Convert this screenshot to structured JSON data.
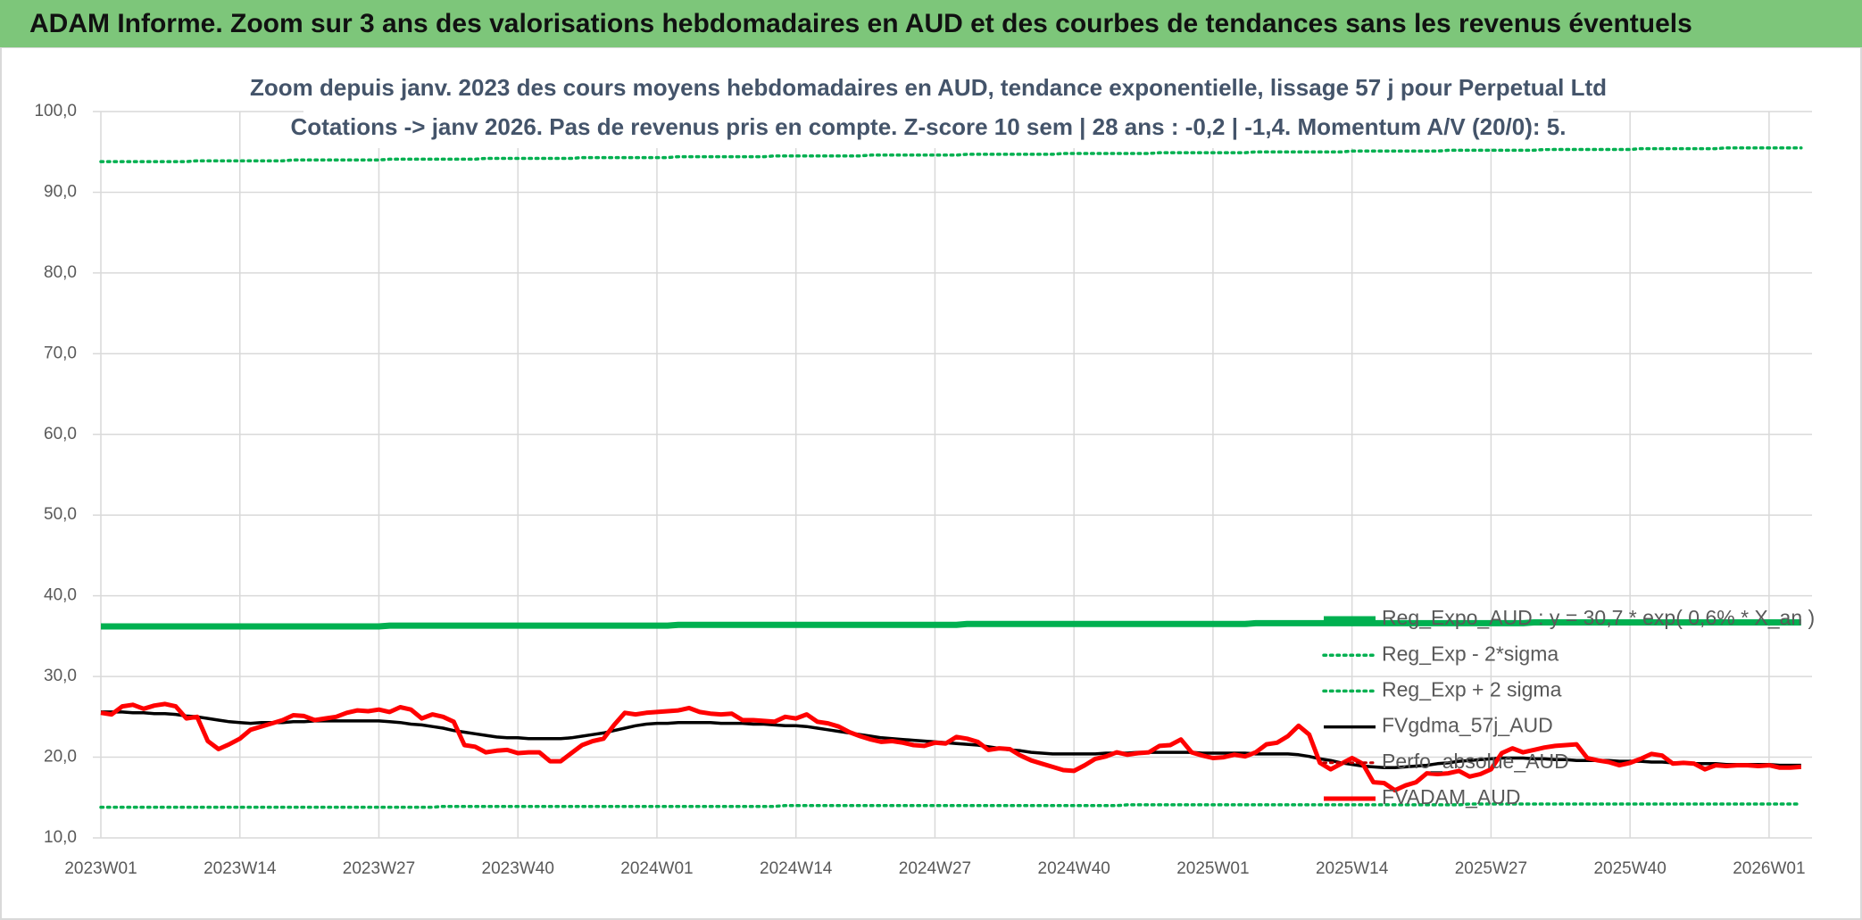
{
  "chart_data": {
    "type": "line",
    "header": "ADAM Informe. Zoom sur 3 ans des valorisations hebdomadaires en AUD et des courbes de tendances sans les revenus éventuels",
    "title": "Zoom depuis janv. 2023 des cours moyens hebdomadaires en AUD, tendance exponentielle, lissage 57 j pour Perpetual Ltd",
    "subtitle": "Cotations -> janv 2026. Pas de revenus pris en compte. Z-score 10 sem | 28 ans : -0,2 | -1,4. Momentum A/V (20/0): 5.",
    "grid": true,
    "legend": "bottom-right",
    "ylim": [
      10,
      100
    ],
    "yticks": [
      {
        "value": 10,
        "label": "10,0"
      },
      {
        "value": 20,
        "label": "20,0"
      },
      {
        "value": 30,
        "label": "30,0"
      },
      {
        "value": 40,
        "label": "40,0"
      },
      {
        "value": 50,
        "label": "50,0"
      },
      {
        "value": 60,
        "label": "60,0"
      },
      {
        "value": 70,
        "label": "70,0"
      },
      {
        "value": 80,
        "label": "80,0"
      },
      {
        "value": 90,
        "label": "90,0"
      },
      {
        "value": 100,
        "label": "100,0"
      }
    ],
    "categories": [
      "2023W01",
      null,
      null,
      null,
      null,
      null,
      null,
      null,
      null,
      null,
      null,
      null,
      null,
      "2023W14",
      null,
      null,
      null,
      null,
      null,
      null,
      null,
      null,
      null,
      null,
      null,
      null,
      "2023W27",
      null,
      null,
      null,
      null,
      null,
      null,
      null,
      null,
      null,
      null,
      null,
      null,
      "2023W40",
      null,
      null,
      null,
      null,
      null,
      null,
      null,
      null,
      null,
      null,
      null,
      null,
      "2024W01",
      null,
      null,
      null,
      null,
      null,
      null,
      null,
      null,
      null,
      null,
      null,
      null,
      "2024W14",
      null,
      null,
      null,
      null,
      null,
      null,
      null,
      null,
      null,
      null,
      null,
      null,
      "2024W27",
      null,
      null,
      null,
      null,
      null,
      null,
      null,
      null,
      null,
      null,
      null,
      null,
      "2024W40",
      null,
      null,
      null,
      null,
      null,
      null,
      null,
      null,
      null,
      null,
      null,
      null,
      "2025W01",
      null,
      null,
      null,
      null,
      null,
      null,
      null,
      null,
      null,
      null,
      null,
      null,
      "2025W14",
      null,
      null,
      null,
      null,
      null,
      null,
      null,
      null,
      null,
      null,
      null,
      null,
      "2025W27",
      null,
      null,
      null,
      null,
      null,
      null,
      null,
      null,
      null,
      null,
      null,
      null,
      "2025W40",
      null,
      null,
      null,
      null,
      null,
      null,
      null,
      null,
      null,
      null,
      null,
      null,
      "2026W01",
      null,
      null,
      null
    ],
    "series": [
      {
        "name": "Reg_Expo_AUD : y = 30,7 * exp( 0,6% * X_an )",
        "color": "#00b050",
        "style": "solid",
        "values": [
          36.2,
          36.2,
          36.2,
          36.2,
          36.2,
          36.2,
          36.2,
          36.2,
          36.2,
          36.2,
          36.2,
          36.2,
          36.2,
          36.2,
          36.2,
          36.2,
          36.2,
          36.2,
          36.2,
          36.2,
          36.2,
          36.2,
          36.2,
          36.2,
          36.2,
          36.2,
          36.2,
          36.3,
          36.3,
          36.3,
          36.3,
          36.3,
          36.3,
          36.3,
          36.3,
          36.3,
          36.3,
          36.3,
          36.3,
          36.3,
          36.3,
          36.3,
          36.3,
          36.3,
          36.3,
          36.3,
          36.3,
          36.3,
          36.3,
          36.3,
          36.3,
          36.3,
          36.3,
          36.3,
          36.4,
          36.4,
          36.4,
          36.4,
          36.4,
          36.4,
          36.4,
          36.4,
          36.4,
          36.4,
          36.4,
          36.4,
          36.4,
          36.4,
          36.4,
          36.4,
          36.4,
          36.4,
          36.4,
          36.4,
          36.4,
          36.4,
          36.4,
          36.4,
          36.4,
          36.4,
          36.4,
          36.5,
          36.5,
          36.5,
          36.5,
          36.5,
          36.5,
          36.5,
          36.5,
          36.5,
          36.5,
          36.5,
          36.5,
          36.5,
          36.5,
          36.5,
          36.5,
          36.5,
          36.5,
          36.5,
          36.5,
          36.5,
          36.5,
          36.5,
          36.5,
          36.5,
          36.5,
          36.5,
          36.6,
          36.6,
          36.6,
          36.6,
          36.6,
          36.6,
          36.6,
          36.6,
          36.6,
          36.6,
          36.6,
          36.6,
          36.6,
          36.6,
          36.6,
          36.6,
          36.6,
          36.6,
          36.6,
          36.6,
          36.6,
          36.6,
          36.6,
          36.6,
          36.6,
          36.6,
          36.7,
          36.7,
          36.7,
          36.7,
          36.7,
          36.7,
          36.7,
          36.7,
          36.7,
          36.7,
          36.7,
          36.7,
          36.7,
          36.7,
          36.7,
          36.7,
          36.7,
          36.7,
          36.7,
          36.7,
          36.7,
          36.7,
          36.7,
          36.7,
          36.7,
          36.7
        ]
      },
      {
        "name": "Reg_Exp - 2*sigma",
        "color": "#00b050",
        "style": "dotted",
        "values": [
          13.8,
          13.8,
          13.8,
          13.8,
          13.8,
          13.8,
          13.8,
          13.8,
          13.8,
          13.8,
          13.8,
          13.8,
          13.8,
          13.8,
          13.8,
          13.8,
          13.8,
          13.8,
          13.8,
          13.8,
          13.8,
          13.8,
          13.8,
          13.8,
          13.8,
          13.8,
          13.8,
          13.8,
          13.8,
          13.8,
          13.8,
          13.8,
          13.9,
          13.9,
          13.9,
          13.9,
          13.9,
          13.9,
          13.9,
          13.9,
          13.9,
          13.9,
          13.9,
          13.9,
          13.9,
          13.9,
          13.9,
          13.9,
          13.9,
          13.9,
          13.9,
          13.9,
          13.9,
          13.9,
          13.9,
          13.9,
          13.9,
          13.9,
          13.9,
          13.9,
          13.9,
          13.9,
          13.9,
          13.9,
          14.0,
          14.0,
          14.0,
          14.0,
          14.0,
          14.0,
          14.0,
          14.0,
          14.0,
          14.0,
          14.0,
          14.0,
          14.0,
          14.0,
          14.0,
          14.0,
          14.0,
          14.0,
          14.0,
          14.0,
          14.0,
          14.0,
          14.0,
          14.0,
          14.0,
          14.0,
          14.0,
          14.0,
          14.0,
          14.0,
          14.0,
          14.0,
          14.1,
          14.1,
          14.1,
          14.1,
          14.1,
          14.1,
          14.1,
          14.1,
          14.1,
          14.1,
          14.1,
          14.1,
          14.1,
          14.1,
          14.1,
          14.1,
          14.1,
          14.1,
          14.1,
          14.1,
          14.1,
          14.1,
          14.1,
          14.1,
          14.1,
          14.1,
          14.1,
          14.1,
          14.1,
          14.1,
          14.1,
          14.1,
          14.2,
          14.2,
          14.2,
          14.2,
          14.2,
          14.2,
          14.2,
          14.2,
          14.2,
          14.2,
          14.2,
          14.2,
          14.2,
          14.2,
          14.2,
          14.2,
          14.2,
          14.2,
          14.2,
          14.2,
          14.2,
          14.2,
          14.2,
          14.2,
          14.2,
          14.2,
          14.2,
          14.2,
          14.2,
          14.2,
          14.2,
          14.2
        ]
      },
      {
        "name": "Reg_Exp + 2 sigma",
        "color": "#00b050",
        "style": "dotted",
        "values": [
          93.8,
          93.8,
          93.8,
          93.8,
          93.8,
          93.8,
          93.8,
          93.8,
          93.8,
          93.9,
          93.9,
          93.9,
          93.9,
          93.9,
          93.9,
          93.9,
          93.9,
          93.9,
          94.0,
          94.0,
          94.0,
          94.0,
          94.0,
          94.0,
          94.0,
          94.0,
          94.0,
          94.1,
          94.1,
          94.1,
          94.1,
          94.1,
          94.1,
          94.1,
          94.1,
          94.1,
          94.2,
          94.2,
          94.2,
          94.2,
          94.2,
          94.2,
          94.2,
          94.2,
          94.2,
          94.3,
          94.3,
          94.3,
          94.3,
          94.3,
          94.3,
          94.3,
          94.3,
          94.3,
          94.4,
          94.4,
          94.4,
          94.4,
          94.4,
          94.4,
          94.4,
          94.4,
          94.4,
          94.5,
          94.5,
          94.5,
          94.5,
          94.5,
          94.5,
          94.5,
          94.5,
          94.5,
          94.6,
          94.6,
          94.6,
          94.6,
          94.6,
          94.6,
          94.6,
          94.6,
          94.6,
          94.7,
          94.7,
          94.7,
          94.7,
          94.7,
          94.7,
          94.7,
          94.7,
          94.7,
          94.8,
          94.8,
          94.8,
          94.8,
          94.8,
          94.8,
          94.8,
          94.8,
          94.8,
          94.9,
          94.9,
          94.9,
          94.9,
          94.9,
          94.9,
          94.9,
          94.9,
          94.9,
          95.0,
          95.0,
          95.0,
          95.0,
          95.0,
          95.0,
          95.0,
          95.0,
          95.0,
          95.1,
          95.1,
          95.1,
          95.1,
          95.1,
          95.1,
          95.1,
          95.1,
          95.1,
          95.2,
          95.2,
          95.2,
          95.2,
          95.2,
          95.2,
          95.2,
          95.2,
          95.2,
          95.3,
          95.3,
          95.3,
          95.3,
          95.3,
          95.3,
          95.3,
          95.3,
          95.3,
          95.4,
          95.4,
          95.4,
          95.4,
          95.4,
          95.4,
          95.4,
          95.4,
          95.5,
          95.5,
          95.5,
          95.5,
          95.5,
          95.5,
          95.5,
          95.5
        ]
      },
      {
        "name": "FVgdma_57j_AUD",
        "color": "#000000",
        "style": "solid",
        "values": [
          25.6,
          25.6,
          25.6,
          25.5,
          25.5,
          25.4,
          25.4,
          25.3,
          25.1,
          25.0,
          24.8,
          24.6,
          24.4,
          24.3,
          24.2,
          24.3,
          24.3,
          24.3,
          24.4,
          24.4,
          24.5,
          24.5,
          24.5,
          24.5,
          24.5,
          24.5,
          24.5,
          24.4,
          24.3,
          24.1,
          24.0,
          23.8,
          23.6,
          23.3,
          23.1,
          22.9,
          22.7,
          22.5,
          22.4,
          22.4,
          22.3,
          22.3,
          22.3,
          22.3,
          22.4,
          22.6,
          22.8,
          23.0,
          23.3,
          23.6,
          23.9,
          24.1,
          24.2,
          24.2,
          24.3,
          24.3,
          24.3,
          24.3,
          24.2,
          24.2,
          24.2,
          24.1,
          24.1,
          24.0,
          23.9,
          23.9,
          23.8,
          23.6,
          23.4,
          23.2,
          23.0,
          22.8,
          22.6,
          22.4,
          22.3,
          22.2,
          22.1,
          22.0,
          21.9,
          21.8,
          21.7,
          21.6,
          21.5,
          21.3,
          21.1,
          20.9,
          20.8,
          20.6,
          20.5,
          20.4,
          20.4,
          20.4,
          20.4,
          20.4,
          20.5,
          20.5,
          20.5,
          20.6,
          20.6,
          20.6,
          20.6,
          20.6,
          20.6,
          20.5,
          20.5,
          20.5,
          20.5,
          20.5,
          20.4,
          20.4,
          20.4,
          20.4,
          20.3,
          20.1,
          19.8,
          19.6,
          19.3,
          19.1,
          18.9,
          18.8,
          18.7,
          18.7,
          18.8,
          18.9,
          19.0,
          19.2,
          19.3,
          19.5,
          19.6,
          19.7,
          19.8,
          19.9,
          19.9,
          19.9,
          19.8,
          19.8,
          19.7,
          19.7,
          19.6,
          19.6,
          19.6,
          19.6,
          19.5,
          19.5,
          19.5,
          19.4,
          19.4,
          19.3,
          19.3,
          19.2,
          19.2,
          19.2,
          19.1,
          19.1,
          19.1,
          19.1,
          19.1,
          19.0,
          19.0,
          19.0
        ]
      },
      {
        "name": "Perfo_absolue_AUD",
        "color": "#c00000",
        "style": "dotted",
        "values": [
          null,
          null,
          null,
          null,
          null,
          null,
          null,
          null,
          null,
          null,
          null,
          null,
          null,
          null,
          null,
          null,
          null,
          null,
          null,
          null,
          null,
          null,
          null,
          null,
          null,
          null,
          null,
          null,
          null,
          null,
          null,
          null,
          null,
          null,
          null,
          null,
          null,
          null,
          null,
          null,
          null,
          null,
          null,
          null,
          null,
          null,
          null,
          null,
          null,
          null,
          null,
          null,
          null,
          null,
          null,
          null,
          null,
          null,
          null,
          null,
          null,
          null,
          null,
          null,
          null,
          null,
          null,
          null,
          null,
          null,
          null,
          null,
          null,
          null,
          null,
          null,
          null,
          null,
          null,
          null,
          null,
          null,
          null,
          null,
          null,
          null,
          null,
          null,
          null,
          null,
          null,
          null,
          null,
          null,
          null,
          null,
          null,
          null,
          null,
          null,
          null,
          null,
          null,
          null,
          null,
          null,
          null,
          null,
          null,
          null,
          null,
          null,
          null,
          null,
          null,
          null,
          null,
          null,
          null,
          null,
          null,
          null,
          null,
          null,
          null,
          null,
          null,
          null,
          null,
          null,
          null,
          null,
          null,
          null,
          null,
          null,
          null,
          null,
          null,
          null,
          null,
          null,
          null,
          null,
          null,
          null,
          null,
          null,
          null,
          null,
          null,
          null,
          null,
          null,
          null,
          null,
          null,
          null,
          null,
          null
        ]
      },
      {
        "name": "FVADAM_AUD",
        "color": "#ff0000",
        "style": "solid",
        "values": [
          25.5,
          25.3,
          26.3,
          26.5,
          26.0,
          26.4,
          26.6,
          26.3,
          24.8,
          25.0,
          22.0,
          21.0,
          21.6,
          22.3,
          23.4,
          23.8,
          24.2,
          24.6,
          25.2,
          25.1,
          24.6,
          24.8,
          25.0,
          25.5,
          25.8,
          25.7,
          25.9,
          25.6,
          26.2,
          25.9,
          24.8,
          25.3,
          25.0,
          24.4,
          21.5,
          21.3,
          20.6,
          20.8,
          20.9,
          20.5,
          20.6,
          20.6,
          19.5,
          19.5,
          20.5,
          21.5,
          22.0,
          22.3,
          24.0,
          25.5,
          25.3,
          25.5,
          25.6,
          25.7,
          25.8,
          26.1,
          25.6,
          25.4,
          25.3,
          25.4,
          24.6,
          24.6,
          24.5,
          24.4,
          25.0,
          24.8,
          25.3,
          24.4,
          24.2,
          23.8,
          23.1,
          22.6,
          22.2,
          21.9,
          22.0,
          21.8,
          21.5,
          21.4,
          21.8,
          21.7,
          22.5,
          22.3,
          21.9,
          20.9,
          21.1,
          21.0,
          20.2,
          19.6,
          19.2,
          18.8,
          18.4,
          18.3,
          19.0,
          19.8,
          20.1,
          20.6,
          20.3,
          20.5,
          20.6,
          21.4,
          21.5,
          22.2,
          20.6,
          20.2,
          19.9,
          20.0,
          20.3,
          20.1,
          20.6,
          21.6,
          21.8,
          22.6,
          23.9,
          22.8,
          19.3,
          18.5,
          19.2,
          19.9,
          19.2,
          16.9,
          16.8,
          15.9,
          16.5,
          16.9,
          18.0,
          17.9,
          18.0,
          18.3,
          17.6,
          17.9,
          18.5,
          20.5,
          21.1,
          20.6,
          20.9,
          21.2,
          21.4,
          21.5,
          21.6,
          19.9,
          19.6,
          19.4,
          19.0,
          19.3,
          19.8,
          20.4,
          20.2,
          19.2,
          19.3,
          19.2,
          18.5,
          19.0,
          18.9,
          19.0,
          19.0,
          18.9,
          19.0,
          18.7,
          18.7,
          18.8
        ]
      }
    ]
  }
}
